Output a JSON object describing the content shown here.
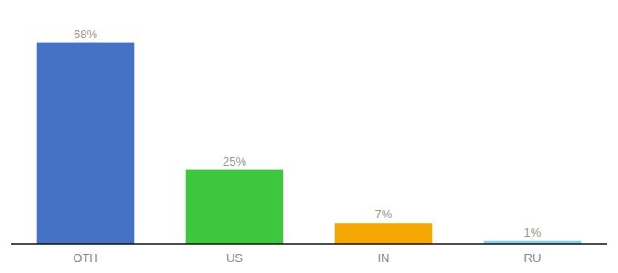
{
  "chart_data": {
    "type": "bar",
    "categories": [
      "OTH",
      "US",
      "IN",
      "RU"
    ],
    "values": [
      68,
      25,
      7,
      1
    ],
    "value_labels": [
      "68%",
      "25%",
      "7%",
      "1%"
    ],
    "colors": [
      "#4472C4",
      "#3EC63E",
      "#F4A700",
      "#87CEEB"
    ],
    "ylim": [
      0,
      78
    ],
    "data_labels": true,
    "tick_labels": "x"
  }
}
